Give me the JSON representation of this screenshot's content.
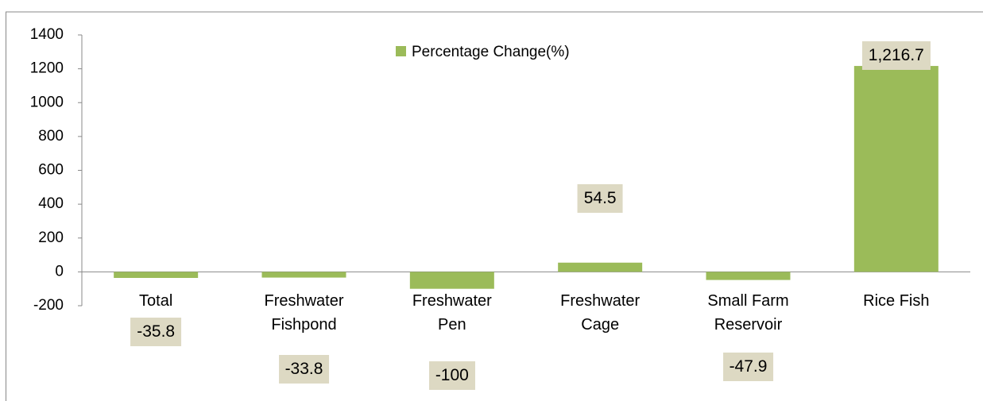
{
  "chart_data": {
    "type": "bar",
    "categories": [
      "Total",
      "Freshwater Fishpond",
      "Freshwater Pen",
      "Freshwater Cage",
      "Small Farm Reservoir",
      "Rice Fish"
    ],
    "series": [
      {
        "name": "Percentage Change(%)",
        "color": "#9bbb59",
        "values": [
          -35.8,
          -33.8,
          -100,
          54.5,
          -47.9,
          1216.7
        ],
        "value_labels": [
          "-35.8",
          "-33.8",
          "-100",
          "54.5",
          "-47.9",
          "1,216.7"
        ]
      }
    ],
    "ylim": [
      -200,
      1400
    ],
    "yticks": [
      -200,
      0,
      200,
      400,
      600,
      800,
      1000,
      1200,
      1400
    ],
    "legend": "top"
  }
}
